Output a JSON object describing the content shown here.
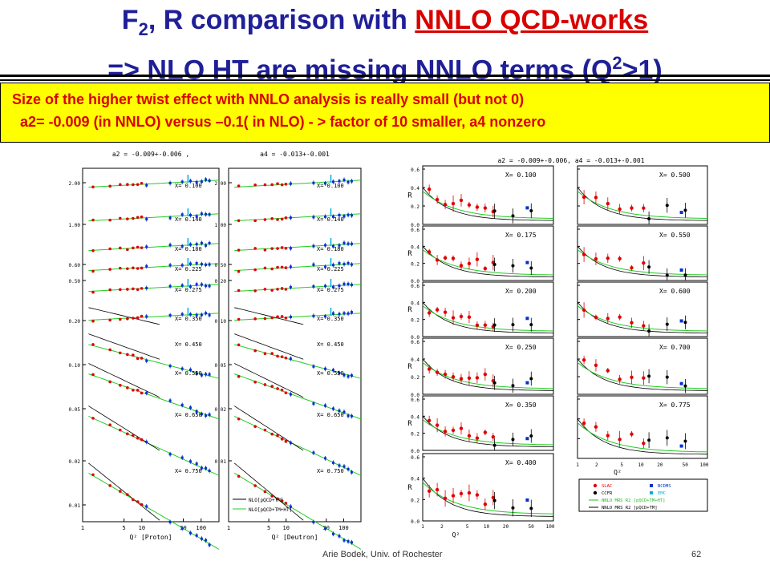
{
  "slide": {
    "title_line1_a": "F",
    "title_line1_sub": "2",
    "title_line1_b": ", R comparison with ",
    "title_line1_red": "NNLO QCD-works",
    "title_line2_a": "=> NLO HT are missing NNLO terms (Q",
    "title_line2_sup": "2",
    "title_line2_b": ">1)",
    "note_line1": "Size of the higher twist effect with NNLO analysis is really small (but not 0)",
    "note_line2": "a2=  -0.009 (in NNLO)    versus  –0.1( in NLO) - > factor of 10 smaller, a4 nonzero",
    "footer_author": "Arie Bodek,  Univ. of Rochester",
    "footer_page": "62"
  },
  "chart_data": [
    {
      "type": "scatter",
      "panel": "F2 proton",
      "title": "a2 = -0.009+-0.006 ,",
      "xlabel": "Q² [Proton]",
      "x_ticks": [
        "1",
        "5",
        "10",
        "50",
        "100"
      ],
      "y_ticks": [
        "2.00",
        "1.00",
        "0.60",
        "0.50",
        "0.20",
        "0.10",
        "0.05",
        "0.02",
        "0.01"
      ],
      "x_scale": "log",
      "bins": [
        "X= 0.100",
        "X= 0.140",
        "X= 0.180",
        "X= 0.225",
        "X= 0.275",
        "X= 0.350",
        "X= 0.450",
        "X= 0.550",
        "X= 0.650",
        "X= 0.750"
      ]
    },
    {
      "type": "scatter",
      "panel": "F2 deuteron",
      "title": "a4 = -0.013+-0.001",
      "xlabel": "Q² [Deutron]",
      "x_ticks": [
        "1",
        "5",
        "10",
        "50",
        "100"
      ],
      "y_ticks": [
        "2.00",
        "1.00",
        "0.50",
        "0.20",
        "0.10",
        "0.05",
        "0.02",
        "0.01"
      ],
      "x_scale": "log",
      "bins": [
        "X= 0.100",
        "X= 0.140",
        "X= 0.180",
        "X= 0.225",
        "X= 0.275",
        "X= 0.350",
        "X= 0.450",
        "X= 0.550",
        "X= 0.650",
        "X= 0.750"
      ],
      "legend": [
        "NLO[pQCD+TM]",
        "NLO[pQCD+TM+HT]"
      ]
    },
    {
      "type": "scatter",
      "panel": "R vs Q2",
      "title": "a2 = -0.009+-0.006, a4 = -0.013+-0.001",
      "ylabel": "R",
      "xlabel": "Q²",
      "x_ticks": [
        "1",
        "2",
        "5",
        "10",
        "20",
        "50",
        "100"
      ],
      "y_ticks": [
        "0.0",
        "0.2",
        "0.4",
        "0.6"
      ],
      "ylim": [
        0,
        0.6
      ],
      "bins_left": [
        "X= 0.100",
        "X= 0.175",
        "X= 0.200",
        "X= 0.250",
        "X= 0.350",
        "X= 0.400"
      ],
      "bins_right": [
        "X= 0.500",
        "X= 0.550",
        "X= 0.600",
        "X= 0.700",
        "X= 0.775"
      ],
      "legend": [
        {
          "name": "SLAC",
          "color": "#e00000"
        },
        {
          "name": "BCDMS",
          "color": "#0030d0"
        },
        {
          "name": "CCFR",
          "color": "#000000"
        },
        {
          "name": "EMC",
          "color": "#00b0e0"
        },
        {
          "name": "NNLO MRS R2 [pQCD+TM+HT]",
          "color": "#22bb22"
        },
        {
          "name": "NNLO MRS R2 [pQCD+TM]",
          "color": "#000000"
        }
      ]
    }
  ]
}
